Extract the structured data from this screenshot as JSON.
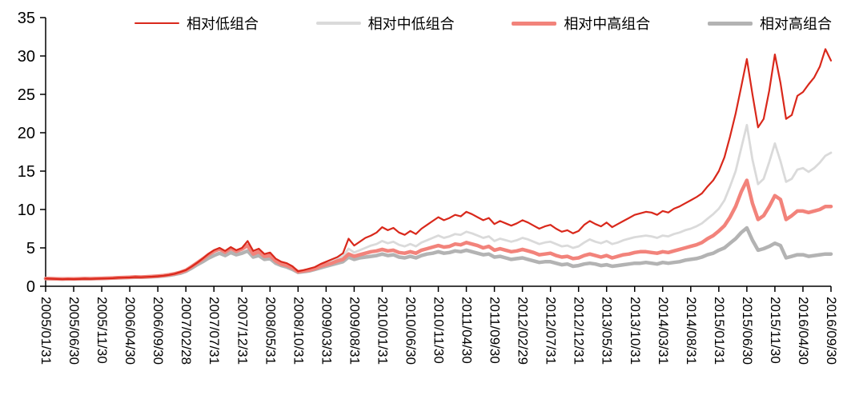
{
  "chart_data": {
    "type": "line",
    "title": "",
    "xlabel": "",
    "ylabel": "",
    "ylim": [
      0,
      35
    ],
    "y_ticks": [
      0,
      5,
      10,
      15,
      20,
      25,
      30,
      35
    ],
    "grid": false,
    "legend_position": "top",
    "n_points": 141,
    "tick_interval": 5,
    "x_tick_labels": [
      "2005/01/31",
      "2005/06/30",
      "2005/11/30",
      "2006/04/30",
      "2006/09/30",
      "2007/02/28",
      "2007/07/31",
      "2007/12/31",
      "2008/05/31",
      "2008/10/31",
      "2009/03/31",
      "2009/08/31",
      "2010/01/31",
      "2010/06/30",
      "2010/11/30",
      "2011/04/30",
      "2011/09/30",
      "2012/02/29",
      "2012/07/31",
      "2012/12/31",
      "2013/05/31",
      "2013/10/31",
      "2014/03/31",
      "2014/08/31",
      "2015/01/31",
      "2015/06/30",
      "2015/11/30",
      "2016/04/30",
      "2016/09/30"
    ],
    "axis_color": "#000000",
    "series": [
      {
        "name": "相对低组合",
        "color": "#d9281b",
        "width": 2.2,
        "values": [
          1.0,
          0.98,
          0.95,
          0.92,
          0.95,
          0.93,
          0.95,
          0.98,
          0.96,
          0.98,
          1.0,
          1.02,
          1.05,
          1.1,
          1.12,
          1.15,
          1.2,
          1.18,
          1.22,
          1.25,
          1.3,
          1.38,
          1.48,
          1.62,
          1.85,
          2.1,
          2.55,
          3.05,
          3.6,
          4.2,
          4.7,
          5.0,
          4.6,
          5.1,
          4.7,
          5.0,
          5.9,
          4.6,
          4.9,
          4.2,
          4.4,
          3.6,
          3.2,
          3.0,
          2.6,
          1.95,
          2.1,
          2.3,
          2.5,
          2.9,
          3.2,
          3.5,
          3.8,
          4.3,
          6.2,
          5.3,
          5.8,
          6.3,
          6.6,
          7.0,
          7.7,
          7.3,
          7.6,
          7.0,
          6.7,
          7.2,
          6.8,
          7.5,
          8.0,
          8.5,
          9.0,
          8.6,
          8.9,
          9.3,
          9.1,
          9.7,
          9.4,
          9.0,
          8.6,
          8.9,
          8.1,
          8.5,
          8.2,
          7.9,
          8.2,
          8.6,
          8.3,
          7.9,
          7.5,
          7.8,
          8.0,
          7.5,
          7.1,
          7.3,
          6.9,
          7.2,
          8.0,
          8.5,
          8.1,
          7.8,
          8.3,
          7.7,
          8.1,
          8.5,
          8.9,
          9.3,
          9.5,
          9.7,
          9.6,
          9.3,
          9.8,
          9.6,
          10.1,
          10.4,
          10.8,
          11.2,
          11.6,
          12.1,
          13.0,
          13.8,
          15.0,
          16.8,
          19.5,
          22.5,
          26.0,
          29.6,
          25.0,
          20.7,
          21.8,
          25.5,
          30.2,
          26.5,
          21.8,
          22.3,
          24.8,
          25.3,
          26.3,
          27.2,
          28.6,
          30.9,
          29.4
        ]
      },
      {
        "name": "相对中低组合",
        "color": "#dadada",
        "width": 2.8,
        "values": [
          1.0,
          0.98,
          0.96,
          0.94,
          0.96,
          0.95,
          0.97,
          0.99,
          0.98,
          1.0,
          1.02,
          1.04,
          1.06,
          1.1,
          1.13,
          1.16,
          1.2,
          1.19,
          1.23,
          1.27,
          1.32,
          1.4,
          1.5,
          1.62,
          1.8,
          2.05,
          2.5,
          3.0,
          3.5,
          4.05,
          4.5,
          4.8,
          4.4,
          4.9,
          4.5,
          4.8,
          5.5,
          4.3,
          4.6,
          4.0,
          4.1,
          3.4,
          3.0,
          2.8,
          2.5,
          1.9,
          2.0,
          2.2,
          2.4,
          2.7,
          3.0,
          3.3,
          3.6,
          3.9,
          4.9,
          4.4,
          4.7,
          5.0,
          5.3,
          5.5,
          5.9,
          5.6,
          5.8,
          5.4,
          5.2,
          5.5,
          5.2,
          5.7,
          6.0,
          6.3,
          6.6,
          6.3,
          6.5,
          6.8,
          6.7,
          7.1,
          6.9,
          6.6,
          6.3,
          6.5,
          5.9,
          6.2,
          6.0,
          5.8,
          6.0,
          6.3,
          6.1,
          5.8,
          5.5,
          5.7,
          5.8,
          5.5,
          5.2,
          5.3,
          5.0,
          5.2,
          5.7,
          6.1,
          5.8,
          5.6,
          5.9,
          5.5,
          5.7,
          6.0,
          6.2,
          6.4,
          6.5,
          6.6,
          6.5,
          6.3,
          6.6,
          6.5,
          6.8,
          7.0,
          7.3,
          7.5,
          7.8,
          8.2,
          8.8,
          9.4,
          10.1,
          11.2,
          13.0,
          15.0,
          18.0,
          21.0,
          16.5,
          13.3,
          14.0,
          16.2,
          18.6,
          16.3,
          13.6,
          14.0,
          15.2,
          15.4,
          14.9,
          15.4,
          16.1,
          17.0,
          17.4
        ]
      },
      {
        "name": "相对中高组合",
        "color": "#f2837b",
        "width": 4.5,
        "values": [
          1.0,
          0.99,
          0.97,
          0.95,
          0.97,
          0.96,
          0.98,
          1.0,
          0.99,
          1.01,
          1.03,
          1.05,
          1.08,
          1.12,
          1.15,
          1.18,
          1.22,
          1.2,
          1.24,
          1.28,
          1.33,
          1.4,
          1.5,
          1.64,
          1.82,
          2.08,
          2.55,
          3.05,
          3.55,
          4.1,
          4.55,
          4.85,
          4.45,
          4.95,
          4.55,
          4.85,
          5.3,
          4.2,
          4.5,
          3.9,
          4.0,
          3.3,
          2.9,
          2.7,
          2.4,
          1.9,
          2.0,
          2.1,
          2.3,
          2.6,
          2.8,
          3.0,
          3.3,
          3.5,
          4.2,
          3.9,
          4.1,
          4.3,
          4.5,
          4.6,
          4.8,
          4.6,
          4.7,
          4.4,
          4.3,
          4.5,
          4.3,
          4.7,
          4.9,
          5.1,
          5.3,
          5.1,
          5.2,
          5.5,
          5.4,
          5.7,
          5.5,
          5.3,
          5.0,
          5.2,
          4.7,
          4.9,
          4.7,
          4.5,
          4.6,
          4.8,
          4.6,
          4.4,
          4.1,
          4.2,
          4.3,
          4.0,
          3.8,
          3.9,
          3.6,
          3.7,
          4.0,
          4.2,
          4.0,
          3.8,
          4.0,
          3.7,
          3.9,
          4.1,
          4.2,
          4.4,
          4.5,
          4.5,
          4.4,
          4.3,
          4.5,
          4.4,
          4.6,
          4.8,
          5.0,
          5.2,
          5.4,
          5.7,
          6.2,
          6.6,
          7.2,
          7.9,
          9.0,
          10.4,
          12.3,
          13.8,
          10.8,
          8.7,
          9.2,
          10.4,
          11.8,
          11.3,
          8.7,
          9.2,
          9.8,
          9.8,
          9.6,
          9.8,
          10.0,
          10.4,
          10.4
        ]
      },
      {
        "name": "相对高组合",
        "color": "#b3b3b3",
        "width": 4.5,
        "values": [
          1.0,
          0.98,
          0.96,
          0.94,
          0.96,
          0.95,
          0.97,
          0.99,
          0.98,
          1.0,
          1.02,
          1.04,
          1.06,
          1.09,
          1.12,
          1.15,
          1.18,
          1.17,
          1.2,
          1.24,
          1.28,
          1.34,
          1.43,
          1.55,
          1.7,
          1.95,
          2.35,
          2.8,
          3.2,
          3.65,
          4.0,
          4.3,
          4.0,
          4.4,
          4.1,
          4.3,
          4.6,
          3.8,
          4.0,
          3.5,
          3.6,
          3.0,
          2.7,
          2.5,
          2.2,
          1.8,
          1.9,
          2.0,
          2.2,
          2.4,
          2.6,
          2.8,
          3.0,
          3.2,
          3.8,
          3.5,
          3.7,
          3.8,
          3.9,
          4.0,
          4.2,
          4.0,
          4.1,
          3.8,
          3.7,
          3.9,
          3.7,
          4.0,
          4.2,
          4.3,
          4.5,
          4.3,
          4.4,
          4.6,
          4.5,
          4.7,
          4.5,
          4.3,
          4.1,
          4.2,
          3.8,
          3.9,
          3.7,
          3.5,
          3.6,
          3.7,
          3.5,
          3.3,
          3.1,
          3.2,
          3.2,
          3.0,
          2.8,
          2.9,
          2.6,
          2.7,
          2.9,
          3.0,
          2.9,
          2.7,
          2.8,
          2.6,
          2.7,
          2.8,
          2.9,
          3.0,
          3.0,
          3.1,
          3.0,
          2.9,
          3.1,
          3.0,
          3.1,
          3.2,
          3.4,
          3.5,
          3.6,
          3.8,
          4.1,
          4.3,
          4.7,
          5.0,
          5.6,
          6.2,
          7.0,
          7.6,
          6.0,
          4.7,
          4.9,
          5.2,
          5.6,
          5.3,
          3.7,
          3.9,
          4.1,
          4.1,
          3.9,
          4.0,
          4.1,
          4.2,
          4.2
        ]
      }
    ]
  }
}
